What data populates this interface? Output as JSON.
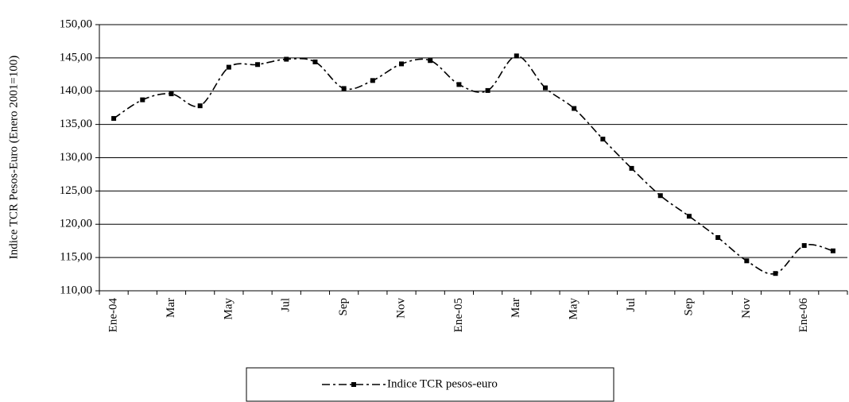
{
  "chart_data": {
    "type": "line",
    "y_label": "Indice TCR Pesos-Euro (Enero 2001=100)",
    "categories": [
      "Ene-04",
      null,
      "Mar",
      null,
      "May",
      null,
      "Jul",
      null,
      "Sep",
      null,
      "Nov",
      null,
      "Ene-05",
      null,
      "Mar",
      null,
      "May",
      null,
      "Jul",
      null,
      "Sep",
      null,
      "Nov",
      null,
      "Ene-06",
      null
    ],
    "series": [
      {
        "name": "Indice TCR pesos-euro",
        "color": "#000000",
        "values": [
          135.9,
          138.7,
          139.6,
          137.8,
          143.6,
          144.0,
          144.8,
          144.4,
          140.4,
          141.6,
          144.1,
          144.6,
          141.0,
          140.1,
          145.3,
          140.5,
          137.4,
          132.8,
          128.4,
          124.3,
          121.2,
          118.0,
          114.5,
          112.6,
          116.8,
          116.0
        ]
      }
    ],
    "ylim": [
      110,
      150
    ],
    "yticks": [
      {
        "value": 110,
        "label": "110,00"
      },
      {
        "value": 115,
        "label": "115,00"
      },
      {
        "value": 120,
        "label": "120,00"
      },
      {
        "value": 125,
        "label": "125,00"
      },
      {
        "value": 130,
        "label": "130,00"
      },
      {
        "value": 135,
        "label": "135,00"
      },
      {
        "value": 140,
        "label": "140,00"
      },
      {
        "value": 145,
        "label": "145,00"
      },
      {
        "value": 150,
        "label": "150,00"
      }
    ],
    "grid": true
  }
}
